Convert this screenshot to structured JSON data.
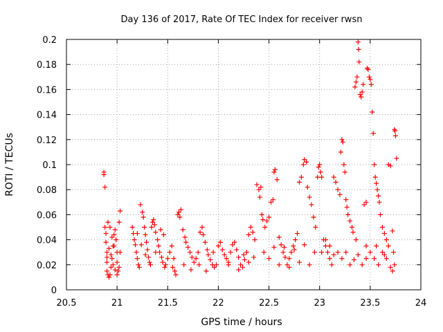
{
  "chart_data": {
    "type": "scatter",
    "title": "Day 136 of 2017, Rate Of TEC Index for receiver rwsn",
    "xlabel": "GPS time / hours",
    "ylabel": "ROTI / TECUs",
    "xlim": [
      20.5,
      24
    ],
    "ylim": [
      0,
      0.2
    ],
    "x_ticks": [
      20.5,
      21,
      21.5,
      22,
      22.5,
      23,
      23.5,
      24
    ],
    "x_tick_labels": [
      "20.5",
      "21",
      "21.5",
      "22",
      "22.5",
      "23",
      "23.5",
      "24"
    ],
    "y_ticks": [
      0,
      0.02,
      0.04,
      0.06,
      0.08,
      0.1,
      0.12,
      0.14,
      0.16,
      0.18,
      0.2
    ],
    "y_tick_labels": [
      "0",
      "0.02",
      "0.04",
      "0.06",
      "0.08",
      "0.1",
      "0.12",
      "0.14",
      "0.16",
      "0.18",
      "0.2"
    ],
    "grid": true,
    "marker": "+",
    "series": [
      {
        "name": "ROTI",
        "color": "#ff0000",
        "points": [
          [
            20.87,
            0.094
          ],
          [
            20.87,
            0.092
          ],
          [
            20.88,
            0.082
          ],
          [
            20.88,
            0.05
          ],
          [
            20.89,
            0.045
          ],
          [
            20.89,
            0.038
          ],
          [
            20.9,
            0.03
          ],
          [
            20.9,
            0.022
          ],
          [
            20.9,
            0.015
          ],
          [
            20.91,
            0.012
          ],
          [
            20.92,
            0.01
          ],
          [
            20.93,
            0.012
          ],
          [
            20.94,
            0.018
          ],
          [
            20.95,
            0.025
          ],
          [
            20.96,
            0.035
          ],
          [
            20.97,
            0.044
          ],
          [
            20.98,
            0.048
          ],
          [
            20.99,
            0.04
          ],
          [
            21.0,
            0.03
          ],
          [
            21.0,
            0.022
          ],
          [
            21.01,
            0.015
          ],
          [
            21.02,
            0.018
          ],
          [
            21.02,
            0.054
          ],
          [
            21.03,
            0.063
          ],
          [
            21.03,
            0.03
          ],
          [
            20.91,
            0.054
          ],
          [
            20.93,
            0.05
          ],
          [
            20.95,
            0.042
          ],
          [
            20.92,
            0.033
          ],
          [
            20.94,
            0.028
          ],
          [
            20.96,
            0.02
          ],
          [
            20.98,
            0.016
          ],
          [
            21.0,
            0.012
          ],
          [
            20.9,
            0.026
          ],
          [
            20.97,
            0.035
          ],
          [
            21.15,
            0.05
          ],
          [
            21.16,
            0.045
          ],
          [
            21.17,
            0.04
          ],
          [
            21.18,
            0.036
          ],
          [
            21.19,
            0.03
          ],
          [
            21.2,
            0.025
          ],
          [
            21.21,
            0.02
          ],
          [
            21.22,
            0.018
          ],
          [
            21.23,
            0.068
          ],
          [
            21.25,
            0.062
          ],
          [
            21.26,
            0.058
          ],
          [
            21.27,
            0.05
          ],
          [
            21.28,
            0.044
          ],
          [
            21.29,
            0.038
          ],
          [
            21.3,
            0.032
          ],
          [
            21.31,
            0.026
          ],
          [
            21.32,
            0.022
          ],
          [
            21.34,
            0.05
          ],
          [
            21.35,
            0.054
          ],
          [
            21.36,
            0.056
          ],
          [
            21.37,
            0.052
          ],
          [
            21.38,
            0.046
          ],
          [
            21.4,
            0.04
          ],
          [
            21.41,
            0.035
          ],
          [
            21.42,
            0.03
          ],
          [
            21.44,
            0.026
          ],
          [
            21.45,
            0.022
          ],
          [
            21.47,
            0.018
          ],
          [
            21.48,
            0.02
          ],
          [
            21.2,
            0.045
          ],
          [
            21.24,
            0.036
          ],
          [
            21.28,
            0.028
          ],
          [
            21.33,
            0.02
          ],
          [
            21.38,
            0.03
          ],
          [
            21.43,
            0.048
          ],
          [
            21.46,
            0.044
          ],
          [
            21.5,
            0.025
          ],
          [
            21.52,
            0.03
          ],
          [
            21.54,
            0.035
          ],
          [
            21.55,
            0.018
          ],
          [
            21.57,
            0.015
          ],
          [
            21.58,
            0.012
          ],
          [
            21.6,
            0.06
          ],
          [
            21.61,
            0.062
          ],
          [
            21.63,
            0.064
          ],
          [
            21.62,
            0.058
          ],
          [
            21.65,
            0.048
          ],
          [
            21.67,
            0.042
          ],
          [
            21.68,
            0.038
          ],
          [
            21.7,
            0.034
          ],
          [
            21.72,
            0.03
          ],
          [
            21.74,
            0.026
          ],
          [
            21.76,
            0.022
          ],
          [
            21.78,
            0.025
          ],
          [
            21.8,
            0.03
          ],
          [
            21.82,
            0.046
          ],
          [
            21.84,
            0.05
          ],
          [
            21.85,
            0.044
          ],
          [
            21.87,
            0.038
          ],
          [
            21.89,
            0.032
          ],
          [
            21.9,
            0.028
          ],
          [
            21.92,
            0.024
          ],
          [
            21.94,
            0.02
          ],
          [
            21.96,
            0.018
          ],
          [
            21.98,
            0.02
          ],
          [
            21.56,
            0.025
          ],
          [
            21.66,
            0.02
          ],
          [
            21.73,
            0.016
          ],
          [
            21.81,
            0.02
          ],
          [
            21.88,
            0.015
          ],
          [
            21.95,
            0.03
          ],
          [
            22.0,
            0.035
          ],
          [
            22.02,
            0.038
          ],
          [
            22.04,
            0.032
          ],
          [
            22.06,
            0.028
          ],
          [
            22.08,
            0.025
          ],
          [
            22.1,
            0.022
          ],
          [
            22.12,
            0.03
          ],
          [
            22.14,
            0.036
          ],
          [
            22.16,
            0.038
          ],
          [
            22.18,
            0.032
          ],
          [
            22.2,
            0.026
          ],
          [
            22.22,
            0.02
          ],
          [
            22.24,
            0.018
          ],
          [
            22.26,
            0.024
          ],
          [
            22.28,
            0.03
          ],
          [
            22.3,
            0.044
          ],
          [
            22.32,
            0.05
          ],
          [
            22.34,
            0.046
          ],
          [
            22.36,
            0.04
          ],
          [
            22.38,
            0.084
          ],
          [
            22.4,
            0.08
          ],
          [
            22.41,
            0.074
          ],
          [
            22.42,
            0.082
          ],
          [
            22.43,
            0.06
          ],
          [
            22.44,
            0.056
          ],
          [
            22.46,
            0.05
          ],
          [
            22.48,
            0.055
          ],
          [
            22.5,
            0.058
          ],
          [
            22.52,
            0.07
          ],
          [
            22.54,
            0.072
          ],
          [
            22.55,
            0.094
          ],
          [
            22.56,
            0.096
          ],
          [
            22.58,
            0.088
          ],
          [
            22.6,
            0.042
          ],
          [
            22.62,
            0.036
          ],
          [
            22.64,
            0.03
          ],
          [
            22.66,
            0.026
          ],
          [
            22.68,
            0.02
          ],
          [
            22.7,
            0.025
          ],
          [
            22.72,
            0.03
          ],
          [
            22.74,
            0.035
          ],
          [
            22.76,
            0.04
          ],
          [
            22.78,
            0.045
          ],
          [
            22.8,
            0.086
          ],
          [
            22.82,
            0.09
          ],
          [
            22.84,
            0.1
          ],
          [
            22.85,
            0.104
          ],
          [
            22.87,
            0.102
          ],
          [
            22.88,
            0.082
          ],
          [
            22.9,
            0.074
          ],
          [
            22.92,
            0.068
          ],
          [
            22.94,
            0.058
          ],
          [
            22.96,
            0.05
          ],
          [
            22.98,
            0.09
          ],
          [
            22.99,
            0.098
          ],
          [
            22.1,
            0.02
          ],
          [
            22.2,
            0.016
          ],
          [
            22.3,
            0.022
          ],
          [
            22.45,
            0.03
          ],
          [
            22.5,
            0.025
          ],
          [
            22.6,
            0.02
          ],
          [
            22.7,
            0.018
          ],
          [
            22.8,
            0.022
          ],
          [
            22.9,
            0.02
          ],
          [
            22.25,
            0.028
          ],
          [
            22.35,
            0.026
          ],
          [
            22.55,
            0.034
          ],
          [
            22.65,
            0.034
          ],
          [
            22.75,
            0.032
          ],
          [
            22.85,
            0.036
          ],
          [
            22.95,
            0.03
          ],
          [
            23.0,
            0.1
          ],
          [
            23.01,
            0.094
          ],
          [
            23.02,
            0.09
          ],
          [
            23.04,
            0.04
          ],
          [
            23.06,
            0.035
          ],
          [
            23.08,
            0.03
          ],
          [
            23.1,
            0.025
          ],
          [
            23.12,
            0.02
          ],
          [
            23.14,
            0.09
          ],
          [
            23.16,
            0.086
          ],
          [
            23.18,
            0.08
          ],
          [
            23.2,
            0.076
          ],
          [
            23.21,
            0.11
          ],
          [
            23.22,
            0.12
          ],
          [
            23.23,
            0.118
          ],
          [
            23.24,
            0.1
          ],
          [
            23.25,
            0.094
          ],
          [
            23.26,
            0.072
          ],
          [
            23.27,
            0.066
          ],
          [
            23.28,
            0.06
          ],
          [
            23.3,
            0.055
          ],
          [
            23.32,
            0.05
          ],
          [
            23.33,
            0.046
          ],
          [
            23.35,
            0.162
          ],
          [
            23.36,
            0.166
          ],
          [
            23.37,
            0.17
          ],
          [
            23.38,
            0.198
          ],
          [
            23.385,
            0.192
          ],
          [
            23.39,
            0.182
          ],
          [
            23.4,
            0.156
          ],
          [
            23.41,
            0.154
          ],
          [
            23.42,
            0.158
          ],
          [
            23.43,
            0.164
          ],
          [
            23.44,
            0.068
          ],
          [
            23.46,
            0.07
          ],
          [
            23.47,
            0.177
          ],
          [
            23.48,
            0.176
          ],
          [
            23.49,
            0.17
          ],
          [
            23.5,
            0.168
          ],
          [
            23.51,
            0.164
          ],
          [
            23.52,
            0.142
          ],
          [
            23.53,
            0.125
          ],
          [
            23.54,
            0.1
          ],
          [
            23.55,
            0.09
          ],
          [
            23.56,
            0.085
          ],
          [
            23.57,
            0.08
          ],
          [
            23.58,
            0.075
          ],
          [
            23.59,
            0.07
          ],
          [
            23.6,
            0.06
          ],
          [
            23.62,
            0.05
          ],
          [
            23.64,
            0.045
          ],
          [
            23.66,
            0.04
          ],
          [
            23.68,
            0.1
          ],
          [
            23.7,
            0.099
          ],
          [
            23.72,
            0.047
          ],
          [
            23.74,
            0.128
          ],
          [
            23.745,
            0.127
          ],
          [
            23.75,
            0.123
          ],
          [
            23.76,
            0.105
          ],
          [
            23.74,
            0.02
          ],
          [
            23.72,
            0.015
          ],
          [
            23.7,
            0.018
          ],
          [
            23.66,
            0.025
          ],
          [
            23.62,
            0.03
          ],
          [
            23.58,
            0.02
          ],
          [
            23.54,
            0.025
          ],
          [
            23.5,
            0.03
          ],
          [
            23.46,
            0.025
          ],
          [
            23.42,
            0.02
          ],
          [
            23.38,
            0.028
          ],
          [
            23.34,
            0.024
          ],
          [
            23.3,
            0.02
          ],
          [
            23.26,
            0.03
          ],
          [
            23.22,
            0.025
          ],
          [
            23.18,
            0.03
          ],
          [
            23.14,
            0.028
          ],
          [
            23.1,
            0.035
          ],
          [
            23.06,
            0.04
          ],
          [
            23.02,
            0.03
          ],
          [
            23.36,
            0.04
          ],
          [
            23.46,
            0.035
          ],
          [
            23.56,
            0.035
          ],
          [
            23.64,
            0.028
          ],
          [
            23.68,
            0.035
          ],
          [
            23.73,
            0.03
          ]
        ]
      }
    ]
  }
}
